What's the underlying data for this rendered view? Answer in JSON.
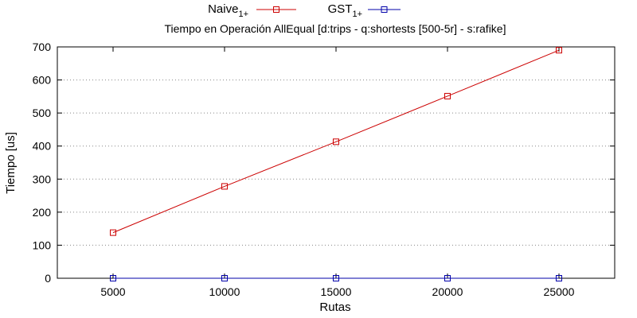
{
  "chart_data": {
    "type": "line",
    "title": "Tiempo en Operación AllEqual [d:trips - q:shortests [500-5r] - s:rafike]",
    "xlabel": "Rutas",
    "ylabel": "Tiempo [us]",
    "xlim": [
      2500,
      27500
    ],
    "ylim": [
      0,
      700
    ],
    "x": [
      5000,
      10000,
      15000,
      20000,
      25000
    ],
    "xticks": [
      "5000",
      "10000",
      "15000",
      "20000",
      "25000"
    ],
    "yticks": [
      "0",
      "100",
      "200",
      "300",
      "400",
      "500",
      "600",
      "700"
    ],
    "grid": true,
    "legend_position": "top",
    "series": [
      {
        "name": "Naive",
        "name_sub": "1+",
        "color": "#cc0000",
        "values": [
          138,
          278,
          413,
          551,
          690
        ]
      },
      {
        "name": "GST",
        "name_sub": "1+",
        "color": "#0000aa",
        "values": [
          0,
          0,
          0,
          0,
          0
        ]
      }
    ]
  }
}
